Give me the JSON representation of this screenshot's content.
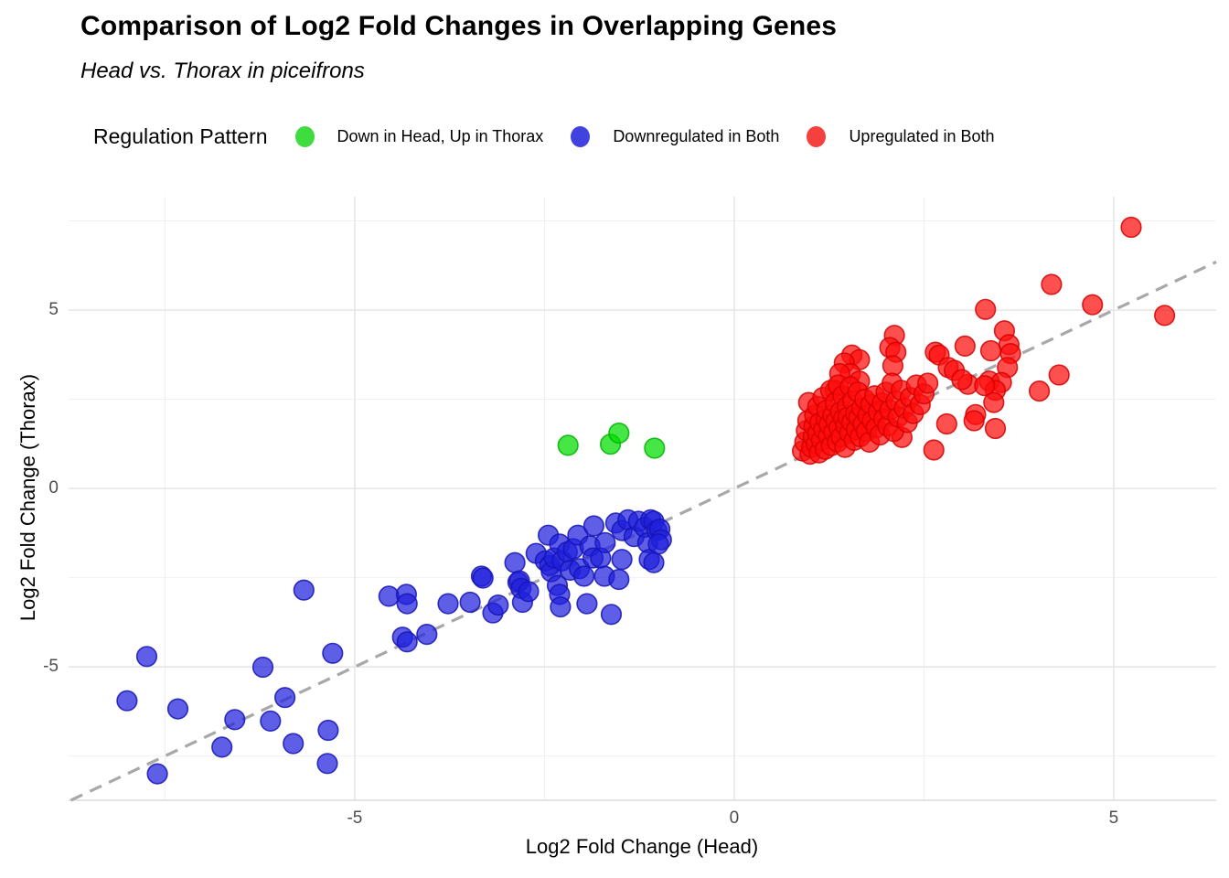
{
  "title": "Comparison of Log2 Fold Changes in Overlapping Genes",
  "subtitle": "Head vs. Thorax in piceifrons",
  "legend": {
    "title": "Regulation Pattern",
    "items": [
      {
        "label": "Down in Head, Up in Thorax",
        "color": "#3fdc3f"
      },
      {
        "label": "Downregulated in Both",
        "color": "#4242e0"
      },
      {
        "label": "Upregulated in Both",
        "color": "#f54040"
      }
    ]
  },
  "chart_data": {
    "type": "scatter",
    "title": "Comparison of Log2 Fold Changes in Overlapping Genes",
    "subtitle": "Head vs. Thorax in piceifrons",
    "xlabel": "Log2 Fold Change (Head)",
    "ylabel": "Log2 Fold Change (Thorax)",
    "xlim": [
      -8.77,
      6.35
    ],
    "ylim": [
      -8.74,
      8.18
    ],
    "x_ticks": [
      -5,
      0,
      5
    ],
    "y_ticks": [
      -5,
      0,
      5
    ],
    "x_tick_labels": [
      "-5",
      "0",
      "5"
    ],
    "y_tick_labels": [
      "-5",
      "0",
      "5"
    ],
    "x_minor_ticks": [
      -7.5,
      -2.5,
      2.5
    ],
    "y_minor_ticks": [
      -7.5,
      -2.5,
      2.5,
      7.5
    ],
    "grid": "on",
    "legend_position": "top",
    "reference_line": {
      "type": "identity y=x",
      "style": "dashed",
      "color": "#a8a8a8"
    },
    "series": [
      {
        "name": "Downregulated in Both",
        "fill": "#2020dd",
        "stroke": "#1515b5",
        "points": [
          [
            -7.74,
            -4.71
          ],
          [
            -8.0,
            -5.95
          ],
          [
            -7.33,
            -6.18
          ],
          [
            -7.6,
            -8.0
          ],
          [
            -6.21,
            -5.01
          ],
          [
            -5.92,
            -5.86
          ],
          [
            -6.58,
            -6.48
          ],
          [
            -6.11,
            -6.52
          ],
          [
            -6.75,
            -7.25
          ],
          [
            -5.81,
            -7.15
          ],
          [
            -5.29,
            -4.62
          ],
          [
            -5.35,
            -6.78
          ],
          [
            -5.36,
            -7.71
          ],
          [
            -5.67,
            -2.85
          ],
          [
            -4.55,
            -3.02
          ],
          [
            -4.32,
            -2.97
          ],
          [
            -4.31,
            -3.23
          ],
          [
            -4.37,
            -4.17
          ],
          [
            -4.31,
            -4.3
          ],
          [
            -4.05,
            -4.09
          ],
          [
            -3.77,
            -3.23
          ],
          [
            -3.48,
            -3.19
          ],
          [
            -3.33,
            -2.46
          ],
          [
            -3.31,
            -2.51
          ],
          [
            -3.18,
            -3.49
          ],
          [
            -3.11,
            -3.27
          ],
          [
            -2.89,
            -2.08
          ],
          [
            -2.85,
            -2.63
          ],
          [
            -2.83,
            -2.59
          ],
          [
            -2.81,
            -2.8
          ],
          [
            -2.79,
            -3.19
          ],
          [
            -2.71,
            -2.89
          ],
          [
            -2.61,
            -1.82
          ],
          [
            -2.49,
            -2.03
          ],
          [
            -2.45,
            -1.31
          ],
          [
            -2.43,
            -2.16
          ],
          [
            -2.41,
            -2.33
          ],
          [
            -2.37,
            -1.95
          ],
          [
            -2.33,
            -2.72
          ],
          [
            -2.3,
            -1.56
          ],
          [
            -2.3,
            -2.97
          ],
          [
            -2.29,
            -3.32
          ],
          [
            -2.27,
            -2.03
          ],
          [
            -2.2,
            -1.78
          ],
          [
            -2.16,
            -2.29
          ],
          [
            -2.12,
            -1.69
          ],
          [
            -2.06,
            -1.31
          ],
          [
            -2.04,
            -2.25
          ],
          [
            -1.98,
            -2.46
          ],
          [
            -1.94,
            -3.23
          ],
          [
            -1.9,
            -1.61
          ],
          [
            -1.86,
            -1.95
          ],
          [
            -1.85,
            -1.05
          ],
          [
            -1.76,
            -1.95
          ],
          [
            -1.71,
            -2.46
          ],
          [
            -1.7,
            -1.52
          ],
          [
            -1.62,
            -3.53
          ],
          [
            -1.56,
            -0.97
          ],
          [
            -1.52,
            -2.55
          ],
          [
            -1.48,
            -1.18
          ],
          [
            -1.48,
            -1.99
          ],
          [
            -1.4,
            -0.88
          ],
          [
            -1.32,
            -1.35
          ],
          [
            -1.26,
            -0.92
          ],
          [
            -1.18,
            -1.09
          ],
          [
            -1.14,
            -1.52
          ],
          [
            -1.12,
            -1.99
          ],
          [
            -1.1,
            -0.88
          ],
          [
            -1.06,
            -0.92
          ],
          [
            -1.06,
            -2.08
          ],
          [
            -1.02,
            -1.18
          ],
          [
            -0.98,
            -1.14
          ],
          [
            -0.96,
            -1.44
          ],
          [
            -1.0,
            -1.56
          ]
        ]
      },
      {
        "name": "Down in Head, Up in Thorax",
        "fill": "#00dd00",
        "stroke": "#00b300",
        "points": [
          [
            -2.19,
            1.21
          ],
          [
            -1.63,
            1.24
          ],
          [
            -1.52,
            1.55
          ],
          [
            -1.05,
            1.13
          ]
        ]
      },
      {
        "name": "Upregulated in Both",
        "fill": "#ff0d0d",
        "stroke": "#d40000",
        "points": [
          [
            5.23,
            7.32
          ],
          [
            4.18,
            5.72
          ],
          [
            4.72,
            5.15
          ],
          [
            3.31,
            5.02
          ],
          [
            5.67,
            4.85
          ],
          [
            3.56,
            4.42
          ],
          [
            2.11,
            4.29
          ],
          [
            3.62,
            4.03
          ],
          [
            3.64,
            3.78
          ],
          [
            3.04,
            3.99
          ],
          [
            2.05,
            3.95
          ],
          [
            2.13,
            3.82
          ],
          [
            3.38,
            3.86
          ],
          [
            2.65,
            3.82
          ],
          [
            1.55,
            3.74
          ],
          [
            2.7,
            3.74
          ],
          [
            1.65,
            3.61
          ],
          [
            1.45,
            3.52
          ],
          [
            2.09,
            3.44
          ],
          [
            2.82,
            3.39
          ],
          [
            2.9,
            3.31
          ],
          [
            1.53,
            3.22
          ],
          [
            1.39,
            3.22
          ],
          [
            3.6,
            3.39
          ],
          [
            4.28,
            3.18
          ],
          [
            3.08,
            2.92
          ],
          [
            3.36,
            3.01
          ],
          [
            1.65,
            3.01
          ],
          [
            3.52,
            2.97
          ],
          [
            4.02,
            2.73
          ],
          [
            1.33,
            2.75
          ],
          [
            3.44,
            2.75
          ],
          [
            3.0,
            3.05
          ],
          [
            3.3,
            2.88
          ],
          [
            3.42,
            2.41
          ],
          [
            3.18,
            2.07
          ],
          [
            3.44,
            1.68
          ],
          [
            2.21,
            1.43
          ],
          [
            2.63,
            1.08
          ],
          [
            2.8,
            1.81
          ],
          [
            3.16,
            1.9
          ],
          [
            0.9,
            1.05
          ],
          [
            0.93,
            1.3
          ],
          [
            0.95,
            1.62
          ],
          [
            0.97,
            1.9
          ],
          [
            0.98,
            2.41
          ],
          [
            1.0,
            0.96
          ],
          [
            1.02,
            1.15
          ],
          [
            1.04,
            1.45
          ],
          [
            1.05,
            1.75
          ],
          [
            1.06,
            2.05
          ],
          [
            1.08,
            1.25
          ],
          [
            1.1,
            1.55
          ],
          [
            1.1,
            2.3
          ],
          [
            1.12,
            1.0
          ],
          [
            1.13,
            1.85
          ],
          [
            1.15,
            1.35
          ],
          [
            1.17,
            2.55
          ],
          [
            1.18,
            1.65
          ],
          [
            1.2,
            1.1
          ],
          [
            1.21,
            1.95
          ],
          [
            1.22,
            2.2
          ],
          [
            1.24,
            1.48
          ],
          [
            1.25,
            1.78
          ],
          [
            1.27,
            2.75
          ],
          [
            1.28,
            1.2
          ],
          [
            1.3,
            2.05
          ],
          [
            1.31,
            1.58
          ],
          [
            1.33,
            2.4
          ],
          [
            1.34,
            1.88
          ],
          [
            1.36,
            1.3
          ],
          [
            1.37,
            2.9
          ],
          [
            1.38,
            1.7
          ],
          [
            1.4,
            2.15
          ],
          [
            1.41,
            1.45
          ],
          [
            1.43,
            2.6
          ],
          [
            1.44,
            1.95
          ],
          [
            1.46,
            1.15
          ],
          [
            1.47,
            1.75
          ],
          [
            1.49,
            2.3
          ],
          [
            1.5,
            2.0
          ],
          [
            1.52,
            1.55
          ],
          [
            1.53,
            2.85
          ],
          [
            1.55,
            1.85
          ],
          [
            1.56,
            2.45
          ],
          [
            1.58,
            1.35
          ],
          [
            1.6,
            2.1
          ],
          [
            1.61,
            1.65
          ],
          [
            1.63,
            2.7
          ],
          [
            1.64,
            1.98
          ],
          [
            1.66,
            1.45
          ],
          [
            1.68,
            2.25
          ],
          [
            1.7,
            1.8
          ],
          [
            1.72,
            2.5
          ],
          [
            1.74,
            1.6
          ],
          [
            1.76,
            2.05
          ],
          [
            1.78,
            1.3
          ],
          [
            1.8,
            2.35
          ],
          [
            1.82,
            1.9
          ],
          [
            1.85,
            2.6
          ],
          [
            1.87,
            1.7
          ],
          [
            1.9,
            2.15
          ],
          [
            1.92,
            1.5
          ],
          [
            1.95,
            2.4
          ],
          [
            1.97,
            1.95
          ],
          [
            2.0,
            2.7
          ],
          [
            2.02,
            1.75
          ],
          [
            2.05,
            2.2
          ],
          [
            2.08,
            2.95
          ],
          [
            2.1,
            1.6
          ],
          [
            2.13,
            2.45
          ],
          [
            2.16,
            2.0
          ],
          [
            2.2,
            2.75
          ],
          [
            2.24,
            2.25
          ],
          [
            2.28,
            1.85
          ],
          [
            2.32,
            2.55
          ],
          [
            2.36,
            2.1
          ],
          [
            2.4,
            2.9
          ],
          [
            2.45,
            2.35
          ],
          [
            2.5,
            2.65
          ],
          [
            2.55,
            2.95
          ]
        ]
      }
    ]
  }
}
